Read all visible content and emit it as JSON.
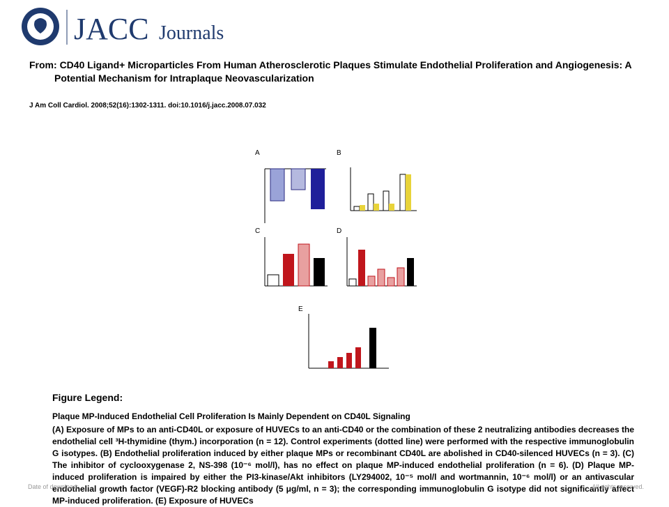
{
  "header": {
    "brand": "JACC",
    "brand_suffix": "Journals"
  },
  "article": {
    "from_label": "From:",
    "title": "CD40 Ligand+ Microparticles From Human Atherosclerotic Plaques Stimulate Endothelial Proliferation and Angiogenesis: A Potential Mechanism for Intraplaque Neovascularization",
    "citation": "J Am Coll Cardiol. 2008;52(16):1302-1311. doi:10.1016/j.jacc.2008.07.032"
  },
  "figure": {
    "panels": [
      "A",
      "B",
      "C",
      "D",
      "E"
    ]
  },
  "legend": {
    "heading": "Figure Legend:",
    "subtitle": "Plaque MP-Induced Endothelial Cell Proliferation Is Mainly Dependent on CD40L Signaling",
    "text": "(A) Exposure of MPs to an anti-CD40L or exposure of HUVECs to an anti-CD40 or the combination of these 2 neutralizing antibodies decreases the endothelial cell ³H-thymidine (thym.) incorporation (n = 12). Control experiments (dotted line) were performed with the respective immunoglobulin G isotypes. (B) Endothelial proliferation induced by either plaque MPs or recombinant CD40L are abolished in CD40-silenced HUVECs (n = 3). (C) The inhibitor of cyclooxygenase 2, NS-398 (10⁻⁶ mol/l), has no effect on plaque MP-induced endothelial proliferation (n = 6). (D) Plaque MP-induced proliferation is impaired by either the PI3-kinase/Akt inhibitors (LY294002, 10⁻⁵ mol/l and wortmannin, 10⁻⁶ mol/l) or an antivascular endothelial growth factor (VEGF)-R2 blocking antibody (5 μg/ml, n = 3); the corresponding immunoglobulin G isotype did not significantly affect MP-induced proliferation. (E) Exposure of HUVECs"
  },
  "footer": {
    "left": "Date of download:",
    "right": "All rights reserved."
  }
}
